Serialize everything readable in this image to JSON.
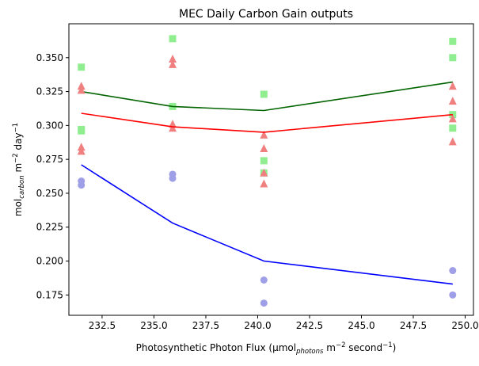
{
  "chart_data": {
    "type": "scatter",
    "title": "MEC Daily Carbon Gain outputs",
    "xlabel": {
      "prefix": "Photosynthetic Photon Flux (µmol",
      "sub": "photons",
      "mid": " m",
      "sup1": "−2",
      "mid2": " second",
      "sup2": "−1",
      "suffix": ")"
    },
    "ylabel": {
      "prefix": "mol",
      "sub": "carbon",
      "mid": " m",
      "sup1": "−2",
      "mid2": " day",
      "sup2": "−1"
    },
    "xlim": [
      230.9,
      250.4
    ],
    "ylim": [
      0.16,
      0.375
    ],
    "xticks": [
      "232.5",
      "235.0",
      "237.5",
      "240.0",
      "242.5",
      "245.0",
      "247.5",
      "250.0"
    ],
    "yticks": [
      "0.175",
      "0.200",
      "0.225",
      "0.250",
      "0.275",
      "0.300",
      "0.325",
      "0.350"
    ],
    "grid": false,
    "series": [
      {
        "marker": "square",
        "color": "#90ee90",
        "line_color": "#006400",
        "points": [
          [
            231.5,
            0.343
          ],
          [
            231.5,
            0.297
          ],
          [
            231.5,
            0.296
          ],
          [
            235.9,
            0.364
          ],
          [
            235.9,
            0.314
          ],
          [
            240.3,
            0.323
          ],
          [
            240.3,
            0.274
          ],
          [
            240.3,
            0.265
          ],
          [
            249.4,
            0.362
          ],
          [
            249.4,
            0.35
          ],
          [
            249.4,
            0.308
          ],
          [
            249.4,
            0.298
          ]
        ],
        "mean": [
          [
            231.5,
            0.325
          ],
          [
            235.9,
            0.314
          ],
          [
            240.3,
            0.311
          ],
          [
            249.4,
            0.332
          ]
        ]
      },
      {
        "marker": "triangle",
        "color": "#f08080",
        "line_color": "#ff0000",
        "points": [
          [
            231.5,
            0.329
          ],
          [
            231.5,
            0.326
          ],
          [
            231.5,
            0.284
          ],
          [
            231.5,
            0.281
          ],
          [
            235.9,
            0.349
          ],
          [
            235.9,
            0.345
          ],
          [
            235.9,
            0.301
          ],
          [
            235.9,
            0.298
          ],
          [
            240.3,
            0.293
          ],
          [
            240.3,
            0.283
          ],
          [
            240.3,
            0.265
          ],
          [
            240.3,
            0.257
          ],
          [
            249.4,
            0.329
          ],
          [
            249.4,
            0.318
          ],
          [
            249.4,
            0.305
          ],
          [
            249.4,
            0.288
          ]
        ],
        "mean": [
          [
            231.5,
            0.309
          ],
          [
            235.9,
            0.299
          ],
          [
            240.3,
            0.295
          ],
          [
            249.4,
            0.308
          ]
        ]
      },
      {
        "marker": "circle",
        "color": "#9f9fe8",
        "line_color": "#0000ff",
        "points": [
          [
            231.5,
            0.259
          ],
          [
            231.5,
            0.256
          ],
          [
            235.9,
            0.264
          ],
          [
            235.9,
            0.261
          ],
          [
            240.3,
            0.186
          ],
          [
            240.3,
            0.169
          ],
          [
            249.4,
            0.193
          ],
          [
            249.4,
            0.175
          ]
        ],
        "mean": [
          [
            231.5,
            0.271
          ],
          [
            235.9,
            0.228
          ],
          [
            240.3,
            0.2
          ],
          [
            249.4,
            0.183
          ]
        ]
      }
    ]
  }
}
